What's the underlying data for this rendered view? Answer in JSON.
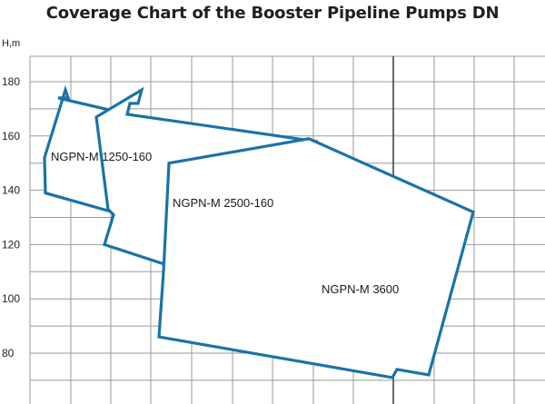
{
  "chart_data": {
    "type": "area",
    "title": "Coverage Chart of the Booster Pipeline Pumps DN",
    "ylabel": "H,m",
    "xlabel": "",
    "ylim": [
      60,
      185
    ],
    "yticks": [
      180,
      160,
      140,
      120,
      100,
      80
    ],
    "grid": true,
    "series_color": "#1a73a8",
    "series": [
      {
        "name": "NGPN-M  1250-160",
        "region_H": [
          177,
          174,
          174,
          166,
          160,
          160,
          133,
          134,
          132,
          139,
          152,
          177
        ]
      },
      {
        "name": "NGPN-M 2500-160",
        "region_H": [
          177,
          172,
          172,
          168,
          158,
          111,
          108,
          100,
          120,
          131,
          133,
          167,
          177
        ]
      },
      {
        "name": "NGPN-M 3600",
        "region_H": [
          150,
          159,
          132,
          72,
          74,
          71,
          86,
          110,
          150
        ]
      }
    ]
  }
}
